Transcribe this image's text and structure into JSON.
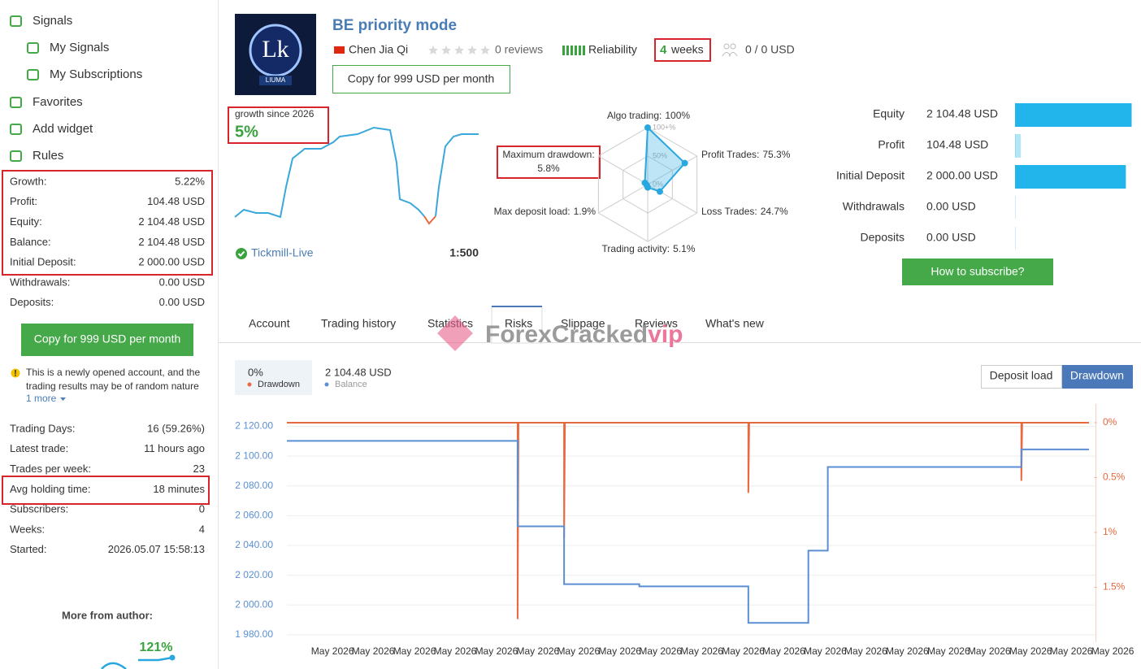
{
  "sidebar": {
    "nav": [
      "Signals",
      "My Signals",
      "My Subscriptions",
      "Favorites",
      "Add widget",
      "Rules"
    ],
    "stats": [
      [
        "Growth:",
        "5.22%"
      ],
      [
        "Profit:",
        "104.48 USD"
      ],
      [
        "Equity:",
        "2 104.48 USD"
      ],
      [
        "Balance:",
        "2 104.48 USD"
      ],
      [
        "Initial Deposit:",
        "2 000.00 USD"
      ],
      [
        "Withdrawals:",
        "0.00 USD"
      ],
      [
        "Deposits:",
        "0.00 USD"
      ]
    ],
    "copy_button": "Copy for 999 USD per month",
    "notice_lines": [
      "This is a newly opened account, and the",
      "trading results may be of random nature"
    ],
    "more_link": "1 more",
    "stats2": [
      [
        "Trading Days:",
        "16 (59.26%)"
      ],
      [
        "Latest trade:",
        "11 hours ago"
      ],
      [
        "Trades per week:",
        "23"
      ],
      [
        "Avg holding time:",
        "18 minutes"
      ],
      [
        "Subscribers:",
        "0"
      ],
      [
        "Weeks:",
        "4"
      ],
      [
        "Started:",
        "2026.05.07 15:58:13"
      ]
    ],
    "more_from_author": "More from author:",
    "author_growth": "121%"
  },
  "header": {
    "logo_letters": "Lk",
    "logo_text": "LIUMA",
    "title": "BE priority mode",
    "author": "Chen Jia Qi",
    "reviews": "0 reviews",
    "reliability": "Reliability",
    "weeks_count": "4",
    "weeks_unit": "weeks",
    "subscribers": "0 / 0 USD",
    "copy_button": "Copy for 999 USD per month"
  },
  "growth": {
    "label": "growth since 2026",
    "value": "5%",
    "broker": "Tickmill-Live",
    "leverage": "1:500"
  },
  "subscribe_button": "How to subscribe?",
  "tabs": [
    "Account",
    "Trading history",
    "Statistics",
    "Risks",
    "Slippage",
    "Reviews",
    "What's new"
  ],
  "active_tab": 3,
  "watermark": {
    "text": "ForexCracked",
    "suffix": "vip"
  },
  "chart_data": [
    {
      "type": "radar",
      "color": "#29a8e0",
      "rlim": [
        0,
        100
      ],
      "rticks": [
        {
          "value": 100,
          "label": "100+%"
        },
        {
          "value": 50,
          "label": "50%"
        },
        {
          "value": 0,
          "label": "0%"
        }
      ],
      "axes": [
        {
          "name": "Algo trading:",
          "value": 100,
          "value_label": "100%"
        },
        {
          "name": "Profit Trades:",
          "value": 75.3,
          "value_label": "75.3%"
        },
        {
          "name": "Loss Trades:",
          "value": 24.7,
          "value_label": "24.7%"
        },
        {
          "name": "Trading activity:",
          "value": 5.1,
          "value_label": "5.1%"
        },
        {
          "name": "Max deposit load:",
          "value": 1.9,
          "value_label": "1.9%"
        },
        {
          "name": "Maximum drawdown:",
          "value": 5.8,
          "value_label": "5.8%"
        }
      ]
    },
    {
      "type": "hbar",
      "color": "#22b5ec",
      "categories": [
        "Equity",
        "Profit",
        "Initial Deposit",
        "Withdrawals",
        "Deposits"
      ],
      "values": [
        2104.48,
        104.48,
        2000,
        0,
        0
      ],
      "value_labels": [
        "2 104.48 USD",
        "104.48 USD",
        "2 000.00 USD",
        "0.00 USD",
        "0.00 USD"
      ],
      "xlim": [
        0,
        2200
      ]
    },
    {
      "type": "line",
      "mode_buttons": [
        "Deposit load",
        "Drawdown"
      ],
      "active_mode": 1,
      "grid": true,
      "xlim": [
        0,
        100
      ],
      "xticks": [
        {
          "value": 5.4,
          "label": "May 2026"
        },
        {
          "value": 10.2,
          "label": "May 2026"
        },
        {
          "value": 15.1,
          "label": "May 2026"
        },
        {
          "value": 19.9,
          "label": "May 2026"
        },
        {
          "value": 24.8,
          "label": "May 2026"
        },
        {
          "value": 29.7,
          "label": "May 2026"
        },
        {
          "value": 34.5,
          "label": "May 2026"
        },
        {
          "value": 39.4,
          "label": "May 2026"
        },
        {
          "value": 44.2,
          "label": "May 2026"
        },
        {
          "value": 49.1,
          "label": "May 2026"
        },
        {
          "value": 54,
          "label": "May 2026"
        },
        {
          "value": 58.8,
          "label": "May 2026"
        },
        {
          "value": 63.7,
          "label": "May 2026"
        },
        {
          "value": 68.5,
          "label": "May 2026"
        },
        {
          "value": 73.4,
          "label": "May 2026"
        },
        {
          "value": 78.3,
          "label": "May 2026"
        },
        {
          "value": 83.1,
          "label": "May 2026"
        },
        {
          "value": 88,
          "label": "May 2026"
        },
        {
          "value": 92.8,
          "label": "May 2026"
        },
        {
          "value": 97.7,
          "label": "May 2026"
        }
      ],
      "ylim": [
        1975,
        2135
      ],
      "yticks": [
        {
          "value": 2120,
          "label": "2 120.00"
        },
        {
          "value": 2100,
          "label": "2 100.00"
        },
        {
          "value": 2080,
          "label": "2 080.00"
        },
        {
          "value": 2060,
          "label": "2 060.00"
        },
        {
          "value": 2040,
          "label": "2 040.00"
        },
        {
          "value": 2020,
          "label": "2 020.00"
        },
        {
          "value": 2000,
          "label": "2 000.00"
        },
        {
          "value": 1980,
          "label": "1 980.00"
        }
      ],
      "y2lim": [
        -0.17,
        2
      ],
      "y2_inverted": true,
      "y2ticks": [
        {
          "value": 0,
          "label": "0%"
        },
        {
          "value": 0.5,
          "label": "0.5%"
        },
        {
          "value": 1,
          "label": "1%"
        },
        {
          "value": 1.5,
          "label": "1.5%"
        }
      ],
      "series": [
        {
          "name": "Drawdown",
          "color": "#e8683f",
          "axis": "y2",
          "current_label": "0%",
          "x": [
            0,
            27.3,
            27.3,
            27.4,
            32.8,
            32.8,
            32.9,
            54.6,
            54.6,
            54.7,
            86.9,
            86.9,
            87,
            94.9
          ],
          "values": [
            0,
            0,
            1.79,
            0,
            0,
            1.05,
            0,
            0,
            0.64,
            0,
            0,
            0.53,
            0,
            0
          ]
        },
        {
          "name": "Balance",
          "color": "#5b8fd4",
          "current_label": "2 104.48 USD",
          "x": [
            0,
            27.3,
            27.3,
            32.8,
            32.8,
            41.7,
            41.7,
            54.6,
            54.6,
            61.7,
            61.7,
            64,
            64,
            86.9,
            86.9,
            94.9
          ],
          "values": [
            2110.2,
            2110.2,
            2052.8,
            2052.8,
            2014,
            2014,
            2012.5,
            2012.5,
            1988,
            1988,
            2036.5,
            2036.5,
            2092.7,
            2092.7,
            2104.5,
            2104.5
          ]
        }
      ]
    }
  ]
}
